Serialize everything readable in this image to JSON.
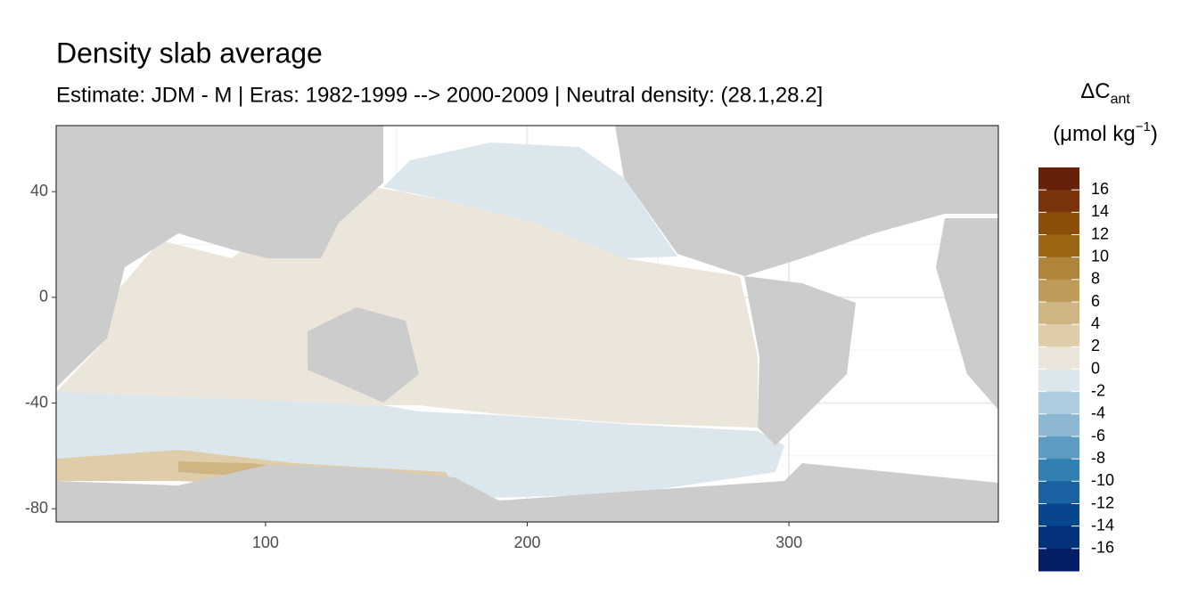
{
  "chart_data": {
    "type": "map",
    "title": "Density slab average",
    "subtitle": "Estimate: JDM - M | Eras: 1982-1999 --> 2000-2009 | Neutral density: (28.1,28.2]",
    "xlim": [
      20,
      380
    ],
    "ylim": [
      -85,
      65
    ],
    "xticks": [
      100,
      200,
      300
    ],
    "yticks": [
      40,
      0,
      -40,
      -80
    ],
    "grid": true,
    "legend": {
      "title": "ΔC",
      "title_sub": "ant",
      "unit": "(μmol kg",
      "unit_sup": "−1",
      "unit_end": ")",
      "breaks": [
        16,
        14,
        12,
        10,
        8,
        6,
        4,
        2,
        0,
        -2,
        -4,
        -6,
        -8,
        -10,
        -12,
        -14,
        -16
      ],
      "colors": [
        "#67200a",
        "#7a330a",
        "#8c4f0b",
        "#9c6513",
        "#b0843a",
        "#bf9b5a",
        "#cfb583",
        "#dfcda9",
        "#ebe5da",
        "#dce7ed",
        "#b0cde0",
        "#8cb8d3",
        "#5e9bc3",
        "#3380b2",
        "#1a62a1",
        "#07468d",
        "#05317a",
        "#041e68"
      ]
    }
  }
}
